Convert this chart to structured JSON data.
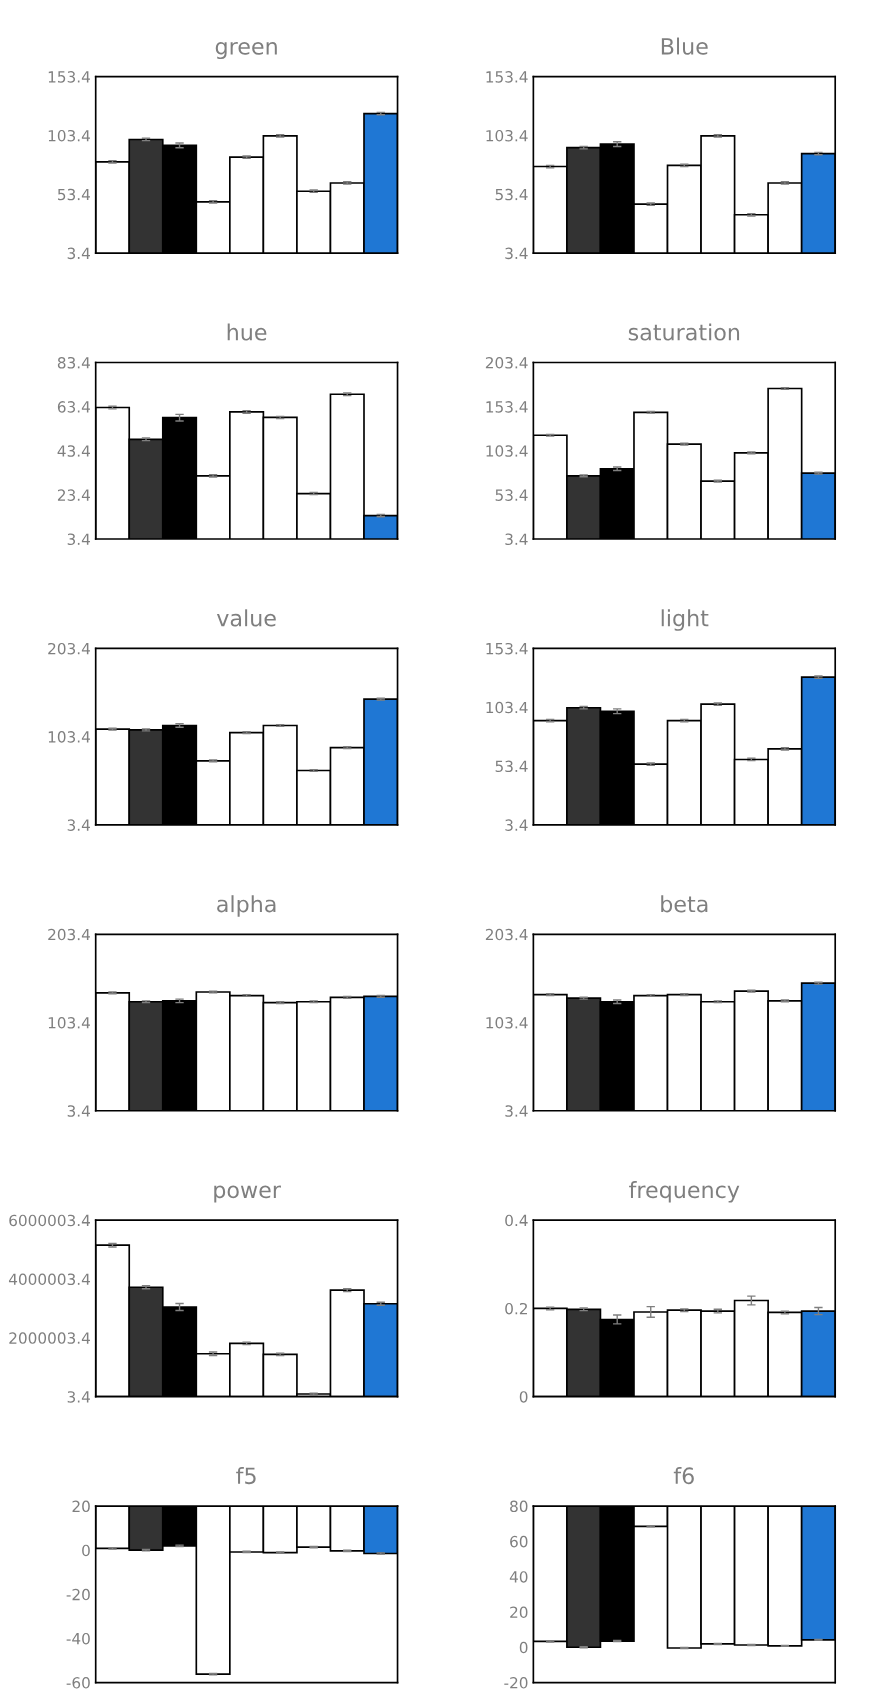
{
  "chart_data": [
    {
      "type": "bar",
      "title": "green",
      "categories": [
        null,
        null,
        null,
        null,
        null,
        null,
        null,
        null,
        null
      ],
      "values": [
        81,
        100,
        95,
        47,
        85,
        103,
        56,
        63,
        122
      ],
      "errors": [
        1,
        1,
        2,
        1,
        1,
        1,
        1,
        1,
        1
      ],
      "colors": [
        "#ffffff",
        "#333333",
        "#000000",
        "#ffffff",
        "#ffffff",
        "#ffffff",
        "#ffffff",
        "#ffffff",
        "#1f77d4"
      ],
      "ylim": [
        3.4,
        153.4
      ],
      "yticks": [
        3.4,
        53.4,
        103.4,
        153.4
      ]
    },
    {
      "type": "bar",
      "title": "Blue",
      "categories": [
        null,
        null,
        null,
        null,
        null,
        null,
        null,
        null,
        null
      ],
      "values": [
        77,
        93,
        96,
        45,
        78,
        103,
        36,
        63,
        88
      ],
      "errors": [
        1,
        1,
        2,
        1,
        1,
        1,
        1,
        1,
        1
      ],
      "colors": [
        "#ffffff",
        "#333333",
        "#000000",
        "#ffffff",
        "#ffffff",
        "#ffffff",
        "#ffffff",
        "#ffffff",
        "#1f77d4"
      ],
      "ylim": [
        3.4,
        153.4
      ],
      "yticks": [
        3.4,
        53.4,
        103.4,
        153.4
      ]
    },
    {
      "type": "bar",
      "title": "hue",
      "categories": [
        null,
        null,
        null,
        null,
        null,
        null,
        null,
        null,
        null
      ],
      "values": [
        63,
        48.6,
        58.4,
        32,
        61,
        58.5,
        24,
        69,
        14
      ],
      "errors": [
        0.6,
        0.6,
        1.5,
        0.5,
        0.6,
        0.5,
        0.5,
        0.6,
        0.5
      ],
      "colors": [
        "#ffffff",
        "#333333",
        "#000000",
        "#ffffff",
        "#ffffff",
        "#ffffff",
        "#ffffff",
        "#ffffff",
        "#1f77d4"
      ],
      "ylim": [
        3.4,
        83.4
      ],
      "yticks": [
        3.4,
        23.4,
        43.4,
        63.4,
        83.4
      ]
    },
    {
      "type": "bar",
      "title": "saturation",
      "categories": [
        null,
        null,
        null,
        null,
        null,
        null,
        null,
        null,
        null
      ],
      "values": [
        121,
        75,
        83,
        147,
        111,
        69,
        101,
        174,
        78
      ],
      "errors": [
        1,
        1,
        2,
        1,
        1,
        1,
        1,
        1,
        1
      ],
      "colors": [
        "#ffffff",
        "#333333",
        "#000000",
        "#ffffff",
        "#ffffff",
        "#ffffff",
        "#ffffff",
        "#ffffff",
        "#1f77d4"
      ],
      "ylim": [
        3.4,
        203.4
      ],
      "yticks": [
        3.4,
        53.4,
        103.4,
        153.4,
        203.4
      ]
    },
    {
      "type": "bar",
      "title": "value",
      "categories": [
        null,
        null,
        null,
        null,
        null,
        null,
        null,
        null,
        null
      ],
      "values": [
        112,
        111,
        116,
        76,
        108,
        116,
        65,
        91,
        146
      ],
      "errors": [
        1,
        1,
        2,
        1,
        1,
        1,
        1,
        1,
        1
      ],
      "colors": [
        "#ffffff",
        "#333333",
        "#000000",
        "#ffffff",
        "#ffffff",
        "#ffffff",
        "#ffffff",
        "#ffffff",
        "#1f77d4"
      ],
      "ylim": [
        3.4,
        203.4
      ],
      "yticks": [
        3.4,
        103.4,
        203.4
      ]
    },
    {
      "type": "bar",
      "title": "light",
      "categories": [
        null,
        null,
        null,
        null,
        null,
        null,
        null,
        null,
        null
      ],
      "values": [
        92,
        103,
        100,
        55,
        92,
        106,
        59,
        68,
        129
      ],
      "errors": [
        1,
        1,
        2,
        1,
        1,
        1,
        1,
        1,
        1
      ],
      "colors": [
        "#ffffff",
        "#333333",
        "#000000",
        "#ffffff",
        "#ffffff",
        "#ffffff",
        "#ffffff",
        "#ffffff",
        "#1f77d4"
      ],
      "ylim": [
        3.4,
        153.4
      ],
      "yticks": [
        3.4,
        53.4,
        103.4,
        153.4
      ]
    },
    {
      "type": "bar",
      "title": "alpha",
      "categories": [
        null,
        null,
        null,
        null,
        null,
        null,
        null,
        null,
        null
      ],
      "values": [
        137,
        127,
        128,
        138,
        134,
        126,
        127,
        132,
        133
      ],
      "errors": [
        1,
        1,
        2,
        1,
        1,
        1,
        1,
        1,
        1
      ],
      "colors": [
        "#ffffff",
        "#333333",
        "#000000",
        "#ffffff",
        "#ffffff",
        "#ffffff",
        "#ffffff",
        "#ffffff",
        "#1f77d4"
      ],
      "ylim": [
        3.4,
        203.4
      ],
      "yticks": [
        3.4,
        103.4,
        203.4
      ]
    },
    {
      "type": "bar",
      "title": "beta",
      "categories": [
        null,
        null,
        null,
        null,
        null,
        null,
        null,
        null,
        null
      ],
      "values": [
        135,
        131,
        127,
        134,
        135,
        127,
        139,
        128,
        148
      ],
      "errors": [
        1,
        1,
        2,
        1,
        1,
        1,
        1,
        1,
        1
      ],
      "colors": [
        "#ffffff",
        "#333333",
        "#000000",
        "#ffffff",
        "#ffffff",
        "#ffffff",
        "#ffffff",
        "#ffffff",
        "#1f77d4"
      ],
      "ylim": [
        3.4,
        203.4
      ],
      "yticks": [
        3.4,
        103.4,
        203.4
      ]
    },
    {
      "type": "bar",
      "title": "power",
      "categories": [
        null,
        null,
        null,
        null,
        null,
        null,
        null,
        null,
        null
      ],
      "values": [
        5150000,
        3720000,
        3050000,
        1460000,
        1810000,
        1440000,
        90000,
        3620000,
        3160000
      ],
      "errors": [
        60000,
        50000,
        120000,
        60000,
        40000,
        40000,
        30000,
        50000,
        50000
      ],
      "colors": [
        "#ffffff",
        "#333333",
        "#000000",
        "#ffffff",
        "#ffffff",
        "#ffffff",
        "#ffffff",
        "#ffffff",
        "#1f77d4"
      ],
      "ylim": [
        3.4,
        6000003.4
      ],
      "yticks": [
        3.4,
        2000003.4,
        4000003.4,
        6000003.4
      ]
    },
    {
      "type": "bar",
      "title": "frequency",
      "categories": [
        null,
        null,
        null,
        null,
        null,
        null,
        null,
        null,
        null
      ],
      "values": [
        0.2,
        0.198,
        0.175,
        0.192,
        0.196,
        0.194,
        0.218,
        0.191,
        0.194
      ],
      "errors": [
        0.003,
        0.003,
        0.01,
        0.012,
        0.003,
        0.004,
        0.01,
        0.003,
        0.008
      ],
      "colors": [
        "#ffffff",
        "#333333",
        "#000000",
        "#ffffff",
        "#ffffff",
        "#ffffff",
        "#ffffff",
        "#ffffff",
        "#1f77d4"
      ],
      "ylim": [
        0,
        0.4
      ],
      "yticks": [
        0,
        0.2,
        0.4
      ]
    },
    {
      "type": "bar",
      "title": "f5",
      "categories": [
        null,
        null,
        null,
        null,
        null,
        null,
        null,
        null,
        null
      ],
      "base": [
        20,
        20,
        20,
        20,
        20,
        20,
        20,
        20,
        20
      ],
      "values": [
        -19.2,
        -20,
        -18,
        -76.2,
        -20.8,
        -21.1,
        -18.6,
        -20.3,
        -21.5
      ],
      "errors": [
        0.3,
        0.3,
        0.3,
        0.3,
        0.3,
        0.3,
        0.3,
        0.3,
        0.3
      ],
      "colors": [
        "#ffffff",
        "#333333",
        "#000000",
        "#ffffff",
        "#ffffff",
        "#ffffff",
        "#ffffff",
        "#ffffff",
        "#1f77d4"
      ],
      "ylim": [
        -60,
        20
      ],
      "yticks": [
        -60,
        -40,
        -20,
        0,
        20
      ]
    },
    {
      "type": "bar",
      "title": "f6",
      "categories": [
        null,
        null,
        null,
        null,
        null,
        null,
        null,
        null,
        null
      ],
      "base": [
        80,
        80,
        80,
        80,
        80,
        80,
        80,
        80,
        80
      ],
      "values": [
        -76.7,
        -80,
        -76.5,
        -11.5,
        -80.4,
        -78.1,
        -78.7,
        -79.2,
        -75.8
      ],
      "errors": [
        0.3,
        0.3,
        0.3,
        0.3,
        0.3,
        0.3,
        0.3,
        0.3,
        0.3
      ],
      "colors": [
        "#ffffff",
        "#333333",
        "#000000",
        "#ffffff",
        "#ffffff",
        "#ffffff",
        "#ffffff",
        "#ffffff",
        "#1f77d4"
      ],
      "ylim": [
        -20,
        80
      ],
      "yticks": [
        -20,
        0,
        20,
        40,
        60,
        80
      ]
    }
  ]
}
